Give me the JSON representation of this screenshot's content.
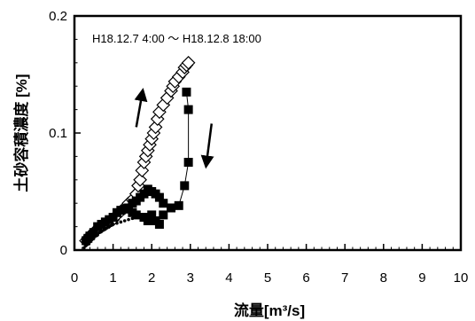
{
  "chart_data": {
    "type": "scatter",
    "annotation": "H18.12.7 4:00 ～ H18.12.8 18:00",
    "xlabel": "流量[m³/s]",
    "ylabel": "土砂容積濃度 [%]",
    "xlim": [
      0,
      10
    ],
    "ylim": [
      0,
      0.2
    ],
    "x_ticks": [
      "0",
      "1",
      "2",
      "3",
      "4",
      "5",
      "6",
      "7",
      "8",
      "9",
      "10"
    ],
    "y_ticks": [
      "0",
      "0.1",
      "0.2"
    ],
    "grid": false,
    "colors": {
      "marker": "#000000",
      "axis": "#000000",
      "background": "#ffffff"
    },
    "series": [
      {
        "marker": "diamond-open",
        "points": [
          [
            0.3,
            0.008
          ],
          [
            0.35,
            0.01
          ],
          [
            0.4,
            0.012
          ],
          [
            0.5,
            0.015
          ],
          [
            0.6,
            0.018
          ],
          [
            0.7,
            0.02
          ],
          [
            0.8,
            0.022
          ],
          [
            0.9,
            0.024
          ],
          [
            1.0,
            0.026
          ],
          [
            1.1,
            0.03
          ],
          [
            1.2,
            0.033
          ],
          [
            1.3,
            0.036
          ],
          [
            1.4,
            0.04
          ],
          [
            1.5,
            0.043
          ],
          [
            1.6,
            0.048
          ],
          [
            1.65,
            0.055
          ],
          [
            1.7,
            0.06
          ],
          [
            1.75,
            0.068
          ],
          [
            1.8,
            0.075
          ],
          [
            1.85,
            0.08
          ],
          [
            1.9,
            0.085
          ],
          [
            1.95,
            0.09
          ],
          [
            2.0,
            0.095
          ],
          [
            2.05,
            0.1
          ],
          [
            2.1,
            0.105
          ],
          [
            2.15,
            0.112
          ],
          [
            2.2,
            0.118
          ],
          [
            2.3,
            0.124
          ],
          [
            2.4,
            0.13
          ],
          [
            2.5,
            0.136
          ],
          [
            2.55,
            0.14
          ],
          [
            2.6,
            0.144
          ],
          [
            2.7,
            0.148
          ],
          [
            2.8,
            0.152
          ],
          [
            2.85,
            0.156
          ],
          [
            2.9,
            0.158
          ],
          [
            2.95,
            0.16
          ]
        ]
      },
      {
        "marker": "square-filled",
        "points": [
          [
            2.9,
            0.135
          ],
          [
            2.95,
            0.12
          ],
          [
            2.95,
            0.075
          ],
          [
            2.85,
            0.055
          ],
          [
            2.7,
            0.038
          ],
          [
            2.5,
            0.036
          ],
          [
            2.3,
            0.04
          ],
          [
            2.2,
            0.045
          ],
          [
            2.1,
            0.048
          ],
          [
            2.0,
            0.05
          ],
          [
            1.9,
            0.052
          ],
          [
            1.8,
            0.048
          ],
          [
            1.7,
            0.045
          ],
          [
            1.6,
            0.042
          ],
          [
            1.5,
            0.04
          ],
          [
            1.4,
            0.036
          ],
          [
            1.3,
            0.035
          ],
          [
            1.2,
            0.034
          ],
          [
            1.1,
            0.032
          ],
          [
            1.0,
            0.028
          ],
          [
            0.9,
            0.026
          ],
          [
            0.8,
            0.024
          ],
          [
            0.7,
            0.022
          ],
          [
            0.6,
            0.02
          ],
          [
            0.5,
            0.015
          ],
          [
            0.4,
            0.012
          ],
          [
            0.3,
            0.008
          ],
          [
            0.35,
            0.01
          ],
          [
            2.2,
            0.022
          ],
          [
            2.1,
            0.025
          ],
          [
            2.0,
            0.03
          ],
          [
            1.8,
            0.028
          ],
          [
            1.6,
            0.03
          ],
          [
            1.5,
            0.032
          ],
          [
            1.9,
            0.025
          ],
          [
            2.3,
            0.03
          ]
        ]
      },
      {
        "marker": "dot-small",
        "points": [
          [
            0.25,
            0.002
          ],
          [
            0.3,
            0.004
          ],
          [
            0.35,
            0.005
          ],
          [
            0.4,
            0.007
          ],
          [
            0.45,
            0.009
          ],
          [
            0.5,
            0.01
          ],
          [
            0.55,
            0.012
          ],
          [
            0.6,
            0.013
          ],
          [
            0.65,
            0.015
          ],
          [
            0.7,
            0.016
          ],
          [
            0.75,
            0.017
          ],
          [
            0.8,
            0.018
          ],
          [
            0.85,
            0.019
          ],
          [
            0.9,
            0.02
          ],
          [
            0.95,
            0.021
          ],
          [
            1.0,
            0.022
          ],
          [
            1.1,
            0.023
          ],
          [
            1.2,
            0.024
          ],
          [
            1.3,
            0.025
          ],
          [
            1.4,
            0.026
          ],
          [
            1.5,
            0.027
          ],
          [
            1.6,
            0.028
          ]
        ]
      }
    ],
    "arrows": [
      {
        "from": [
          1.6,
          0.105
        ],
        "to": [
          1.75,
          0.133
        ],
        "direction": "up"
      },
      {
        "from": [
          3.55,
          0.108
        ],
        "to": [
          3.42,
          0.075
        ],
        "direction": "down"
      }
    ]
  }
}
